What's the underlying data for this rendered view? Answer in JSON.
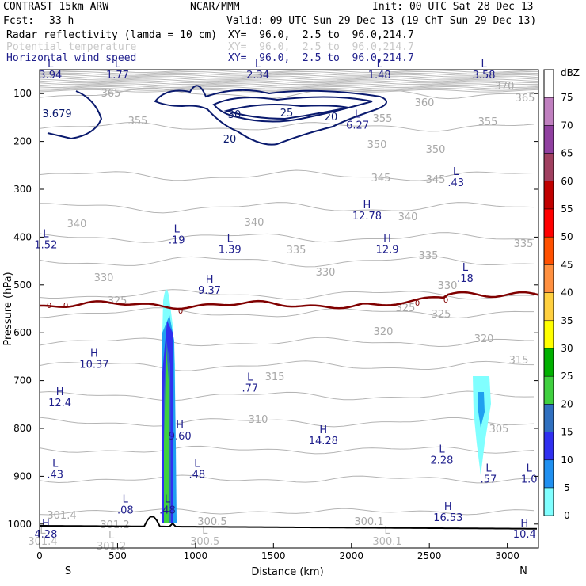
{
  "header": {
    "model": "CONTRAST 15km ARW",
    "org": "NCAR/MMM",
    "init": "Init: 00 UTC Sat 28 Dec 13",
    "fcst_label": "Fcst:",
    "fcst_value": "33 h",
    "valid": "Valid: 09 UTC Sun 29 Dec 13 (19 ChT Sun 29 Dec 13)",
    "fields": [
      {
        "name": "Radar reflectivity (lamda = 10 cm)",
        "xy": "XY=  96.0,  2.5 to  96.0,214.7",
        "color": "#000000"
      },
      {
        "name": "Potential temperature",
        "xy": "XY=  96.0,  2.5 to  96.0,214.7",
        "color": "#c8c8c8"
      },
      {
        "name": "Horizontal wind speed",
        "xy": "XY=  96.0,  2.5 to  96.0,214.7",
        "color": "#1e1e8c"
      }
    ]
  },
  "colorbar": {
    "unit": "dBZ",
    "levels": [
      "75",
      "70",
      "65",
      "60",
      "55",
      "50",
      "45",
      "40",
      "35",
      "30",
      "25",
      "20",
      "15",
      "10",
      "5",
      "0"
    ],
    "colors": [
      "#ffffff",
      "#c080c0",
      "#9040a0",
      "#a04060",
      "#c00000",
      "#ff0000",
      "#ff5000",
      "#ff9040",
      "#ffd040",
      "#ffff00",
      "#00b000",
      "#40d040",
      "#3070c0",
      "#3030f0",
      "#2090f0",
      "#80ffff"
    ]
  },
  "chart_data": {
    "type": "cross-section",
    "x_label": "Distance (km)",
    "y_label": "Pressure (hPa)",
    "x_ticks": [
      "0",
      "500",
      "1000",
      "1500",
      "2000",
      "2500",
      "3000"
    ],
    "y_ticks": [
      "100",
      "200",
      "300",
      "400",
      "500",
      "600",
      "700",
      "800",
      "900",
      "1000"
    ],
    "x_range": [
      0,
      3200
    ],
    "y_range": [
      1050,
      50
    ],
    "left_end": "S",
    "right_end": "N",
    "theta_contour_labels": [
      "370",
      "365",
      "365",
      "360",
      "355",
      "355",
      "355",
      "350",
      "350",
      "345",
      "345",
      "340",
      "340",
      "340",
      "335",
      "335",
      "335",
      "330",
      "330",
      "330",
      "325",
      "325",
      "325",
      "320",
      "320",
      "315",
      "315",
      "310",
      "305",
      "301.4",
      "301.2",
      "300.5",
      "300.1"
    ],
    "wind_contour_labels": [
      "20",
      "25",
      "30",
      "20"
    ],
    "extrema": [
      {
        "t": "L",
        "v": "3.94",
        "x": 70,
        "p": 65
      },
      {
        "t": "L",
        "v": "1.77",
        "x": 500,
        "p": 65
      },
      {
        "t": "L",
        "v": "2.34",
        "x": 1400,
        "p": 65
      },
      {
        "t": "L",
        "v": "1.48",
        "x": 2180,
        "p": 65
      },
      {
        "t": "L",
        "v": "3.58",
        "x": 2850,
        "p": 65
      },
      {
        "t": "L",
        "v": "6.27",
        "x": 2040,
        "p": 170
      },
      {
        "t": "L",
        "v": ".43",
        "x": 2670,
        "p": 290
      },
      {
        "t": "H",
        "v": "12.78",
        "x": 2100,
        "p": 360
      },
      {
        "t": "L",
        "v": "1.52",
        "x": 40,
        "p": 420
      },
      {
        "t": "L",
        "v": ".19",
        "x": 880,
        "p": 410
      },
      {
        "t": "L",
        "v": "1.39",
        "x": 1220,
        "p": 430
      },
      {
        "t": "H",
        "v": "12.9",
        "x": 2230,
        "p": 430
      },
      {
        "t": "L",
        "v": ".18",
        "x": 2730,
        "p": 490
      },
      {
        "t": "H",
        "v": "9.37",
        "x": 1090,
        "p": 515
      },
      {
        "t": "H",
        "v": "10.37",
        "x": 350,
        "p": 670
      },
      {
        "t": "L",
        "v": ".77",
        "x": 1350,
        "p": 720
      },
      {
        "t": "H",
        "v": "12.4",
        "x": 130,
        "p": 750
      },
      {
        "t": "H",
        "v": "9.60",
        "x": 900,
        "p": 820
      },
      {
        "t": "H",
        "v": "14.28",
        "x": 1820,
        "p": 830
      },
      {
        "t": "L",
        "v": "2.28",
        "x": 2580,
        "p": 870
      },
      {
        "t": "L",
        "v": ".43",
        "x": 100,
        "p": 900
      },
      {
        "t": "L",
        "v": ".48",
        "x": 1010,
        "p": 900
      },
      {
        "t": "L",
        "v": ".57",
        "x": 2880,
        "p": 910
      },
      {
        "t": "L",
        "v": "1.0",
        "x": 3140,
        "p": 910
      },
      {
        "t": "L",
        "v": ".08",
        "x": 550,
        "p": 975
      },
      {
        "t": "L",
        "v": ".48",
        "x": 820,
        "p": 975
      },
      {
        "t": "H",
        "v": "16.53",
        "x": 2620,
        "p": 990
      },
      {
        "t": "H",
        "v": "4.28",
        "x": 40,
        "p": 1025
      },
      {
        "t": "H",
        "v": "10.4",
        "x": 3110,
        "p": 1025
      }
    ],
    "extrema_gray": [
      {
        "t": "L",
        "v": "301.4",
        "x": 20,
        "p": 1040
      },
      {
        "t": "L",
        "v": "301.2",
        "x": 460,
        "p": 1050
      },
      {
        "t": "L",
        "v": "300.5",
        "x": 1060,
        "p": 1040
      },
      {
        "t": "L",
        "v": "300.1",
        "x": 2230,
        "p": 1040
      }
    ]
  }
}
